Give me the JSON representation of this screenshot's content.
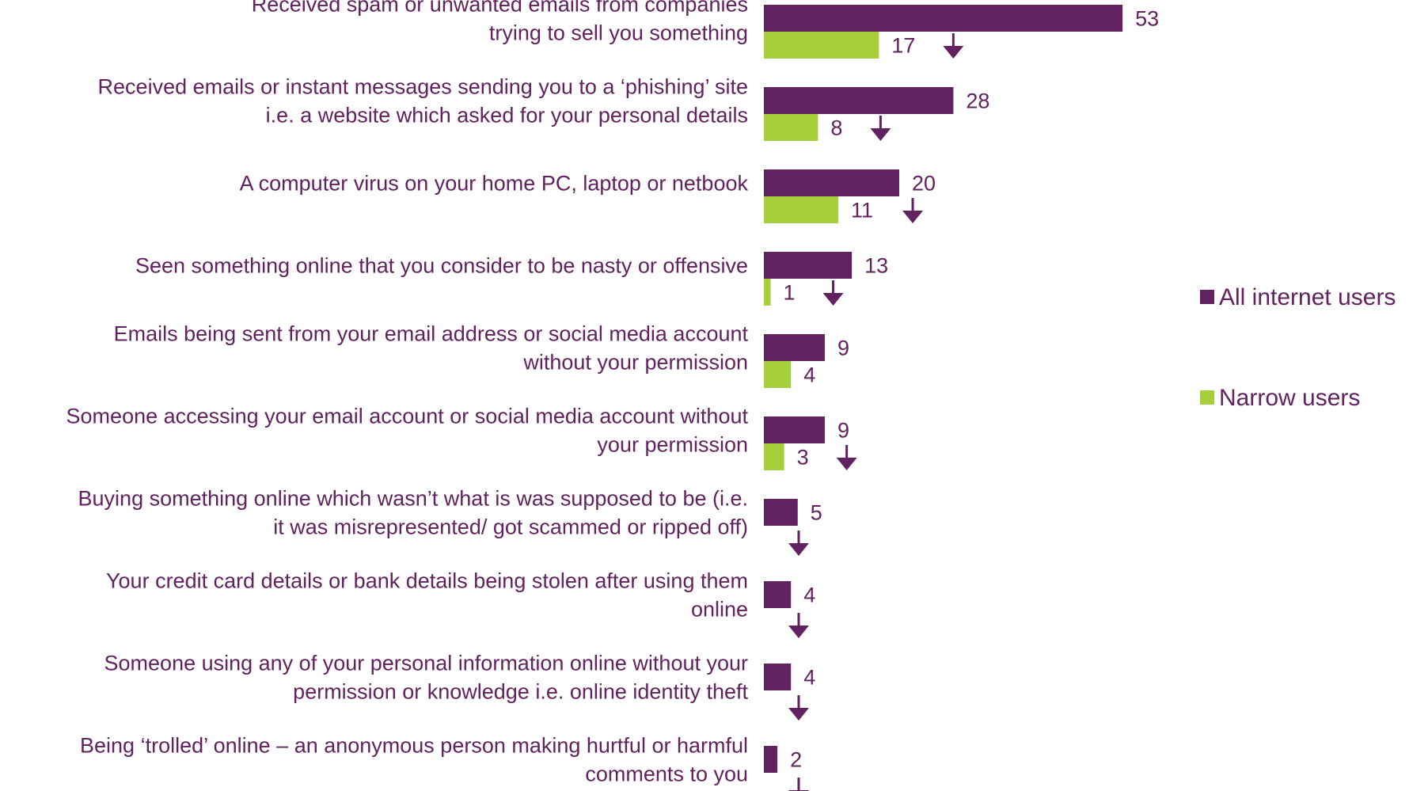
{
  "chart_data": {
    "type": "bar",
    "orientation": "horizontal",
    "categories": [
      [
        "Received spam or unwanted emails from companies",
        "trying to sell you something"
      ],
      [
        "Received emails or instant messages sending you to a ‘phishing’ site",
        "i.e. a website which asked for your personal details"
      ],
      [
        "A computer virus on your home PC, laptop or netbook"
      ],
      [
        "Seen something online that you consider to be nasty or offensive"
      ],
      [
        "Emails being sent from your email address or social media account",
        "without your permission"
      ],
      [
        "Someone accessing your email account or social media account without",
        "your permission"
      ],
      [
        "Buying something online which wasn’t what is was supposed to be (i.e.",
        "it was misrepresented/ got scammed or ripped off)"
      ],
      [
        "Your credit card details or bank details being stolen after using them",
        "online"
      ],
      [
        "Someone using any of your personal information online without your",
        "permission or knowledge i.e. online identity theft"
      ],
      [
        "Being ‘trolled’ online – an anonymous person making hurtful or harmful",
        "comments to you"
      ]
    ],
    "series": [
      {
        "name": "All internet users",
        "color": "#62215f",
        "values": [
          53,
          28,
          20,
          13,
          9,
          9,
          5,
          4,
          4,
          2
        ]
      },
      {
        "name": "Narrow users",
        "color": "#a6cf3c",
        "values": [
          17,
          8,
          11,
          1,
          4,
          3,
          null,
          null,
          null,
          null
        ]
      }
    ],
    "significant_lower": [
      true,
      true,
      true,
      true,
      false,
      true,
      true,
      true,
      true,
      true
    ],
    "arrow_color": "#62215f",
    "text_color": "#62215f",
    "legend_position": "right",
    "xlim": [
      0,
      60
    ],
    "grid": false
  }
}
